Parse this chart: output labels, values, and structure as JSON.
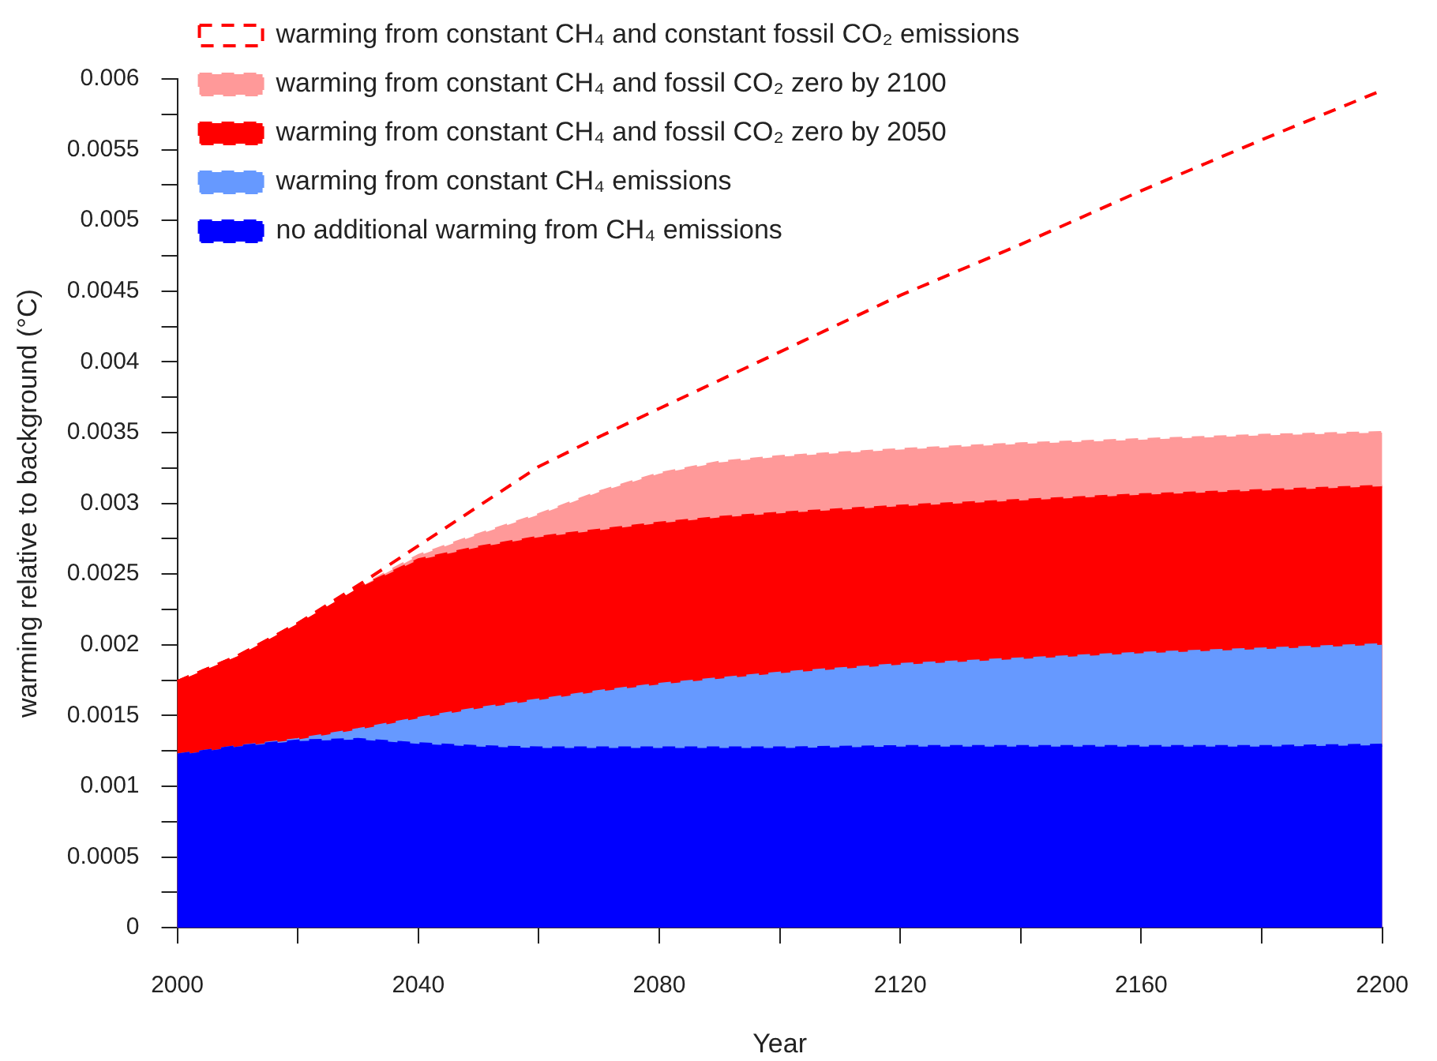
{
  "chart_data": {
    "type": "area",
    "xlabel": "Year",
    "ylabel": "warming relative to background (°C)",
    "x": [
      2000,
      2010,
      2020,
      2030,
      2040,
      2050,
      2060,
      2070,
      2080,
      2090,
      2100,
      2120,
      2140,
      2160,
      2180,
      2200
    ],
    "xlim": [
      2000,
      2200
    ],
    "xticks": [
      2000,
      {
        "value": 2020,
        "label": null
      },
      2040,
      {
        "value": 2060,
        "label": null
      },
      2080,
      {
        "value": 2100,
        "label": null
      },
      2120,
      {
        "value": 2140,
        "label": null
      },
      2160,
      {
        "value": 2180,
        "label": null
      },
      2200
    ],
    "ylim": [
      0,
      0.006
    ],
    "yticks": [
      0,
      {
        "value": 0.00025,
        "label": null
      },
      0.0005,
      {
        "value": 0.00075,
        "label": null
      },
      0.001,
      {
        "value": 0.00125,
        "label": null
      },
      0.0015,
      {
        "value": 0.00175,
        "label": null
      },
      0.002,
      {
        "value": 0.00225,
        "label": null
      },
      0.0025,
      {
        "value": 0.00275,
        "label": null
      },
      0.003,
      {
        "value": 0.00325,
        "label": null
      },
      0.0035,
      {
        "value": 0.00375,
        "label": null
      },
      0.004,
      {
        "value": 0.00425,
        "label": null
      },
      0.0045,
      {
        "value": 0.00475,
        "label": null
      },
      0.005,
      {
        "value": 0.00525,
        "label": null
      },
      0.0055,
      {
        "value": 0.00575,
        "label": null
      },
      0.006
    ],
    "grid": false,
    "legend": "top left",
    "line_style": "dashed",
    "series": [
      {
        "type": "line",
        "name": "warming from constant CH₄ and constant fossil CO₂ emissions",
        "color": "#ff0000",
        "values": [
          0.00174,
          0.00192,
          0.00215,
          0.00242,
          0.0027,
          0.00298,
          0.00326,
          0.00347,
          0.00367,
          0.00387,
          0.00407,
          0.00447,
          0.00483,
          0.00521,
          0.00557,
          0.00592
        ]
      },
      {
        "name": "warming from constant CH₄ and fossil CO₂ zero by 2100",
        "color": "#ff9999",
        "values": [
          0.00174,
          0.00192,
          0.00215,
          0.0024,
          0.00263,
          0.00278,
          0.00292,
          0.00308,
          0.00321,
          0.00329,
          0.00333,
          0.00338,
          0.00342,
          0.00345,
          0.00348,
          0.0035
        ]
      },
      {
        "name": "warming from constant CH₄ and fossil CO₂ zero by 2050",
        "color": "#ff0000",
        "values": [
          0.00174,
          0.00192,
          0.00215,
          0.0024,
          0.0026,
          0.00269,
          0.00276,
          0.00281,
          0.00286,
          0.0029,
          0.00293,
          0.00298,
          0.00302,
          0.00306,
          0.00309,
          0.00312
        ]
      },
      {
        "name": "warming from constant CH₄ emissions",
        "color": "#6699ff",
        "values": [
          0.00122,
          0.00128,
          0.00133,
          0.0014,
          0.00148,
          0.00155,
          0.00161,
          0.00167,
          0.00172,
          0.00176,
          0.0018,
          0.00186,
          0.0019,
          0.00194,
          0.00197,
          0.002
        ]
      },
      {
        "name": "no additional warming from CH₄ emissions",
        "color": "#0000ff",
        "values": [
          0.00122,
          0.00128,
          0.00132,
          0.00133,
          0.0013,
          0.00128,
          0.00127,
          0.00127,
          0.00127,
          0.00127,
          0.00127,
          0.00128,
          0.00128,
          0.00128,
          0.00128,
          0.00129
        ]
      }
    ]
  }
}
